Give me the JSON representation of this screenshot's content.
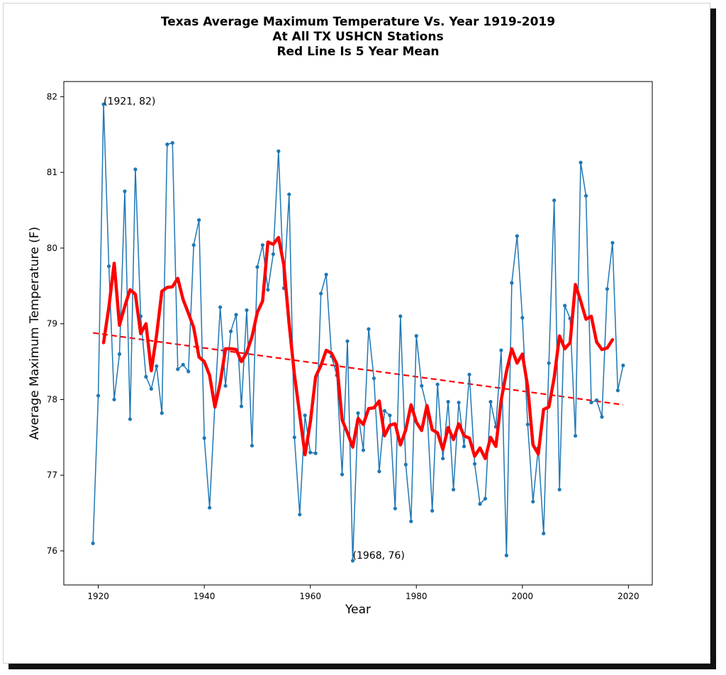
{
  "chart_data": {
    "type": "line",
    "title_lines": [
      "Texas Average Maximum Temperature Vs. Year 1919-2019",
      "At All TX USHCN Stations",
      "Red Line Is 5 Year Mean"
    ],
    "xlabel": "Year",
    "ylabel": "Average Maximum Temperature (F)",
    "xlim": [
      1913.5,
      2024.5
    ],
    "ylim": [
      75.55,
      82.2
    ],
    "xticks": [
      1920,
      1940,
      1960,
      1980,
      2000,
      2020
    ],
    "yticks": [
      76,
      77,
      78,
      79,
      80,
      81,
      82
    ],
    "grid": false,
    "colors": {
      "annual": "#1f77b4",
      "mean": "#ff0000",
      "trend": "#ff0000"
    },
    "annotations": [
      {
        "text": "(1921, 82)",
        "x": 1921,
        "y": 82
      },
      {
        "text": "(1968, 76)",
        "x": 1968,
        "y": 76
      }
    ],
    "series": [
      {
        "style": "line-markers",
        "x": [
          1919,
          1920,
          1921,
          1922,
          1923,
          1924,
          1925,
          1926,
          1927,
          1928,
          1929,
          1930,
          1931,
          1932,
          1933,
          1934,
          1935,
          1936,
          1937,
          1938,
          1939,
          1940,
          1941,
          1942,
          1943,
          1944,
          1945,
          1946,
          1947,
          1948,
          1949,
          1950,
          1951,
          1952,
          1953,
          1954,
          1955,
          1956,
          1957,
          1958,
          1959,
          1960,
          1961,
          1962,
          1963,
          1964,
          1965,
          1966,
          1967,
          1968,
          1969,
          1970,
          1971,
          1972,
          1973,
          1974,
          1975,
          1976,
          1977,
          1978,
          1979,
          1980,
          1981,
          1982,
          1983,
          1984,
          1985,
          1986,
          1987,
          1988,
          1989,
          1990,
          1991,
          1992,
          1993,
          1994,
          1995,
          1996,
          1997,
          1998,
          1999,
          2000,
          2001,
          2002,
          2003,
          2004,
          2005,
          2006,
          2007,
          2008,
          2009,
          2010,
          2011,
          2012,
          2013,
          2014,
          2015,
          2016,
          2017,
          2018,
          2019
        ],
        "values": [
          76.1,
          78.05,
          81.9,
          79.76,
          78.0,
          78.6,
          80.75,
          77.74,
          81.04,
          79.1,
          78.3,
          78.14,
          78.44,
          77.82,
          81.37,
          81.39,
          78.4,
          78.46,
          78.37,
          80.04,
          80.37,
          77.49,
          76.57,
          77.95,
          79.22,
          78.18,
          78.9,
          79.12,
          77.91,
          79.18,
          77.39,
          79.75,
          80.04,
          79.45,
          79.92,
          81.28,
          79.47,
          80.71,
          77.5,
          76.48,
          77.79,
          77.3,
          77.29,
          79.4,
          79.65,
          78.57,
          78.32,
          77.01,
          78.77,
          75.87,
          77.82,
          77.33,
          78.93,
          78.28,
          77.05,
          77.85,
          77.79,
          76.56,
          79.1,
          77.14,
          76.39,
          78.84,
          78.18,
          77.89,
          76.53,
          78.2,
          77.22,
          77.97,
          76.81,
          77.96,
          77.38,
          78.33,
          77.15,
          76.62,
          76.69,
          77.97,
          77.64,
          78.65,
          75.94,
          79.54,
          80.16,
          79.08,
          77.67,
          76.65,
          77.36,
          76.23,
          78.48,
          80.63,
          76.81,
          79.24,
          79.07,
          77.52,
          81.13,
          80.69,
          77.96,
          77.99,
          77.77,
          79.46,
          80.07,
          78.12,
          78.45
        ]
      },
      {
        "style": "thick-line",
        "x": [
          1921,
          1922,
          1923,
          1924,
          1925,
          1926,
          1927,
          1928,
          1929,
          1930,
          1931,
          1932,
          1933,
          1934,
          1935,
          1936,
          1937,
          1938,
          1939,
          1940,
          1941,
          1942,
          1943,
          1944,
          1945,
          1946,
          1947,
          1948,
          1949,
          1950,
          1951,
          1952,
          1953,
          1954,
          1955,
          1956,
          1957,
          1958,
          1959,
          1960,
          1961,
          1962,
          1963,
          1964,
          1965,
          1966,
          1967,
          1968,
          1969,
          1970,
          1971,
          1972,
          1973,
          1974,
          1975,
          1976,
          1977,
          1978,
          1979,
          1980,
          1981,
          1982,
          1983,
          1984,
          1985,
          1986,
          1987,
          1988,
          1989,
          1990,
          1991,
          1992,
          1993,
          1994,
          1995,
          1996,
          1997,
          1998,
          1999,
          2000,
          2001,
          2002,
          2003,
          2004,
          2005,
          2006,
          2007,
          2008,
          2009,
          2010,
          2011,
          2012,
          2013,
          2014,
          2015,
          2016,
          2017
        ],
        "values": [
          78.75,
          79.22,
          79.8,
          78.98,
          79.23,
          79.45,
          79.39,
          78.87,
          79.0,
          78.38,
          78.85,
          79.43,
          79.48,
          79.49,
          79.6,
          79.32,
          79.14,
          78.95,
          78.56,
          78.5,
          78.32,
          77.9,
          78.22,
          78.67,
          78.67,
          78.66,
          78.5,
          78.62,
          78.83,
          79.15,
          79.3,
          80.08,
          80.05,
          80.14,
          79.78,
          79.0,
          78.33,
          77.8,
          77.27,
          77.7,
          78.3,
          78.45,
          78.65,
          78.61,
          78.47,
          77.73,
          77.56,
          77.37,
          77.75,
          77.67,
          77.88,
          77.89,
          77.98,
          77.52,
          77.66,
          77.68,
          77.4,
          77.6,
          77.93,
          77.7,
          77.59,
          77.92,
          77.6,
          77.56,
          77.34,
          77.63,
          77.47,
          77.68,
          77.52,
          77.49,
          77.25,
          77.36,
          77.22,
          77.5,
          77.38,
          77.99,
          78.37,
          78.67,
          78.48,
          78.6,
          78.17,
          77.4,
          77.28,
          77.87,
          77.9,
          78.29,
          78.84,
          78.67,
          78.75,
          79.52,
          79.3,
          79.06,
          79.1,
          78.76,
          78.66,
          78.68,
          78.79
        ]
      },
      {
        "style": "dashed-line",
        "x": [
          1919,
          2019
        ],
        "values": [
          78.88,
          77.93
        ]
      }
    ]
  }
}
